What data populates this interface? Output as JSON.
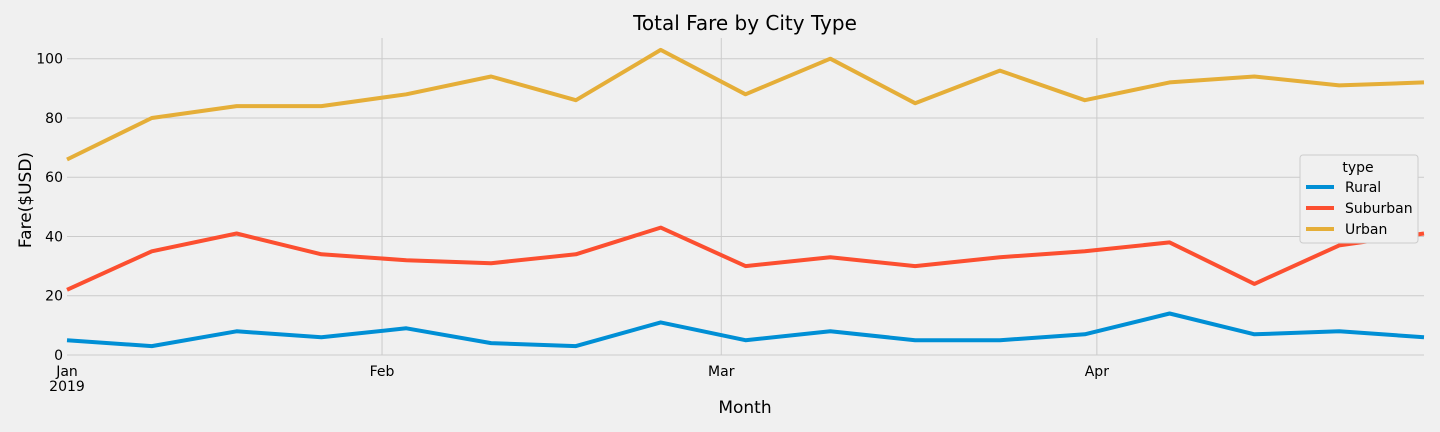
{
  "chart_data": {
    "type": "line",
    "title": "Total Fare by City Type",
    "xlabel": "Month",
    "ylabel": "Fare($USD)",
    "ylim": [
      0,
      107
    ],
    "yticks": [
      0,
      20,
      40,
      60,
      80,
      100
    ],
    "grid": true,
    "x": [
      "2019-01-06",
      "2019-01-13",
      "2019-01-20",
      "2019-01-27",
      "2019-02-03",
      "2019-02-10",
      "2019-02-17",
      "2019-02-24",
      "2019-03-03",
      "2019-03-10",
      "2019-03-17",
      "2019-03-24",
      "2019-03-31",
      "2019-04-07",
      "2019-04-14",
      "2019-04-21",
      "2019-04-28"
    ],
    "xticks": [
      {
        "date": "2019-01-01",
        "label": "Jan",
        "sublabel": "2019"
      },
      {
        "date": "2019-02-01",
        "label": "Feb",
        "sublabel": ""
      },
      {
        "date": "2019-03-01",
        "label": "Mar",
        "sublabel": ""
      },
      {
        "date": "2019-04-01",
        "label": "Apr",
        "sublabel": ""
      }
    ],
    "legend": {
      "title": "type",
      "position": "center-right"
    },
    "series": [
      {
        "name": "Rural",
        "color": "#008fd5",
        "values": [
          5,
          3,
          8,
          6,
          9,
          4,
          3,
          11,
          5,
          8,
          5,
          5,
          7,
          14,
          7,
          8,
          6
        ]
      },
      {
        "name": "Suburban",
        "color": "#fc4f30",
        "values": [
          22,
          35,
          41,
          34,
          32,
          31,
          34,
          43,
          30,
          33,
          30,
          33,
          35,
          38,
          24,
          37,
          41
        ]
      },
      {
        "name": "Urban",
        "color": "#e5ae38",
        "values": [
          66,
          80,
          84,
          84,
          88,
          94,
          86,
          103,
          88,
          100,
          85,
          96,
          86,
          92,
          94,
          91,
          92
        ]
      }
    ]
  }
}
